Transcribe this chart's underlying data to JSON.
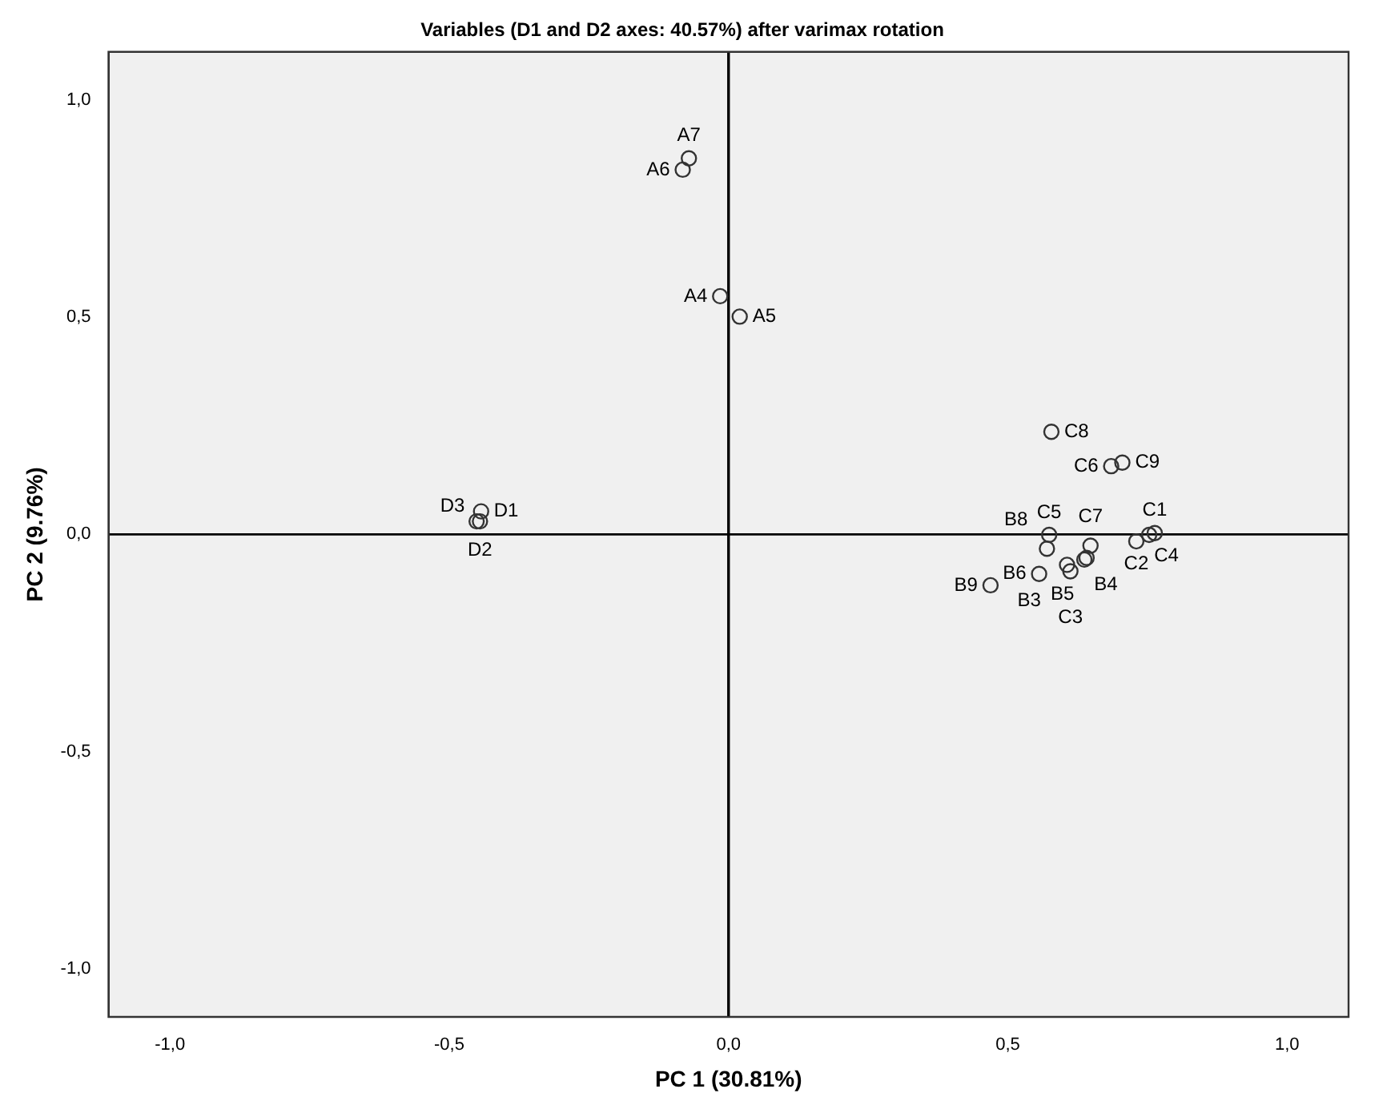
{
  "chart_data": {
    "type": "scatter",
    "title": "Variables (D1 and D2 axes: 40.57%) after varimax rotation",
    "xlabel": "PC 1 (30.81%)",
    "ylabel": "PC 2 (9.76%)",
    "x": [
      -0.071,
      -0.082,
      -0.015,
      0.02,
      -0.443,
      -0.451,
      -0.445,
      0.578,
      0.705,
      0.685,
      0.763,
      0.753,
      0.73,
      0.648,
      0.641,
      0.637,
      0.574,
      0.57,
      0.556,
      0.469,
      0.612,
      0.606
    ],
    "series": [
      {
        "color": "#333333",
        "values": [
          0.865,
          0.839,
          0.548,
          0.501,
          0.053,
          0.03,
          0.03,
          0.236,
          0.165,
          0.157,
          0.003,
          -0.001,
          -0.016,
          -0.026,
          -0.054,
          -0.058,
          -0.001,
          -0.033,
          -0.091,
          -0.117,
          -0.085,
          -0.07
        ]
      }
    ],
    "annotations": [
      {
        "text": "A7",
        "x": -0.071,
        "y": 0.865
      },
      {
        "text": "A6",
        "x": -0.082,
        "y": 0.839
      },
      {
        "text": "A4",
        "x": -0.015,
        "y": 0.548
      },
      {
        "text": "A5",
        "x": 0.02,
        "y": 0.501
      },
      {
        "text": "D1",
        "x": -0.443,
        "y": 0.053
      },
      {
        "text": "D3",
        "x": -0.451,
        "y": 0.03
      },
      {
        "text": "D2",
        "x": -0.445,
        "y": 0.03
      },
      {
        "text": "C8",
        "x": 0.578,
        "y": 0.236
      },
      {
        "text": "C9",
        "x": 0.705,
        "y": 0.165
      },
      {
        "text": "C6",
        "x": 0.685,
        "y": 0.157
      },
      {
        "text": "C1",
        "x": 0.763,
        "y": 0.003
      },
      {
        "text": "C4",
        "x": 0.753,
        "y": -0.001
      },
      {
        "text": "C2",
        "x": 0.73,
        "y": -0.016
      },
      {
        "text": "C7",
        "x": 0.648,
        "y": -0.026
      },
      {
        "text": "B4",
        "x": 0.641,
        "y": -0.054
      },
      {
        "text": "B5",
        "x": 0.637,
        "y": -0.058
      },
      {
        "text": "C5",
        "x": 0.574,
        "y": -0.001
      },
      {
        "text": "B8",
        "x": 0.57,
        "y": -0.033
      },
      {
        "text": "B6",
        "x": 0.556,
        "y": -0.091
      },
      {
        "text": "B9",
        "x": 0.469,
        "y": -0.117
      },
      {
        "text": "C3",
        "x": 0.612,
        "y": -0.085
      },
      {
        "text": "B3",
        "x": 0.606,
        "y": -0.07
      }
    ],
    "ref_lines": [
      {
        "axis": "x",
        "value": 0,
        "color": "#000000"
      },
      {
        "axis": "y",
        "value": 0,
        "color": "#000000"
      }
    ],
    "xlim": [
      -1.11,
      1.11
    ],
    "ylim": [
      -1.11,
      1.11
    ],
    "xticks": [
      {
        "value": -1,
        "label": "-1,0"
      },
      {
        "value": -0.5,
        "label": "-0,5"
      },
      {
        "value": 0,
        "label": "0,0"
      },
      {
        "value": 0.5,
        "label": "0,5"
      },
      {
        "value": 1,
        "label": "1,0"
      }
    ],
    "yticks": [
      {
        "value": -1,
        "label": "-1,0"
      },
      {
        "value": -0.5,
        "label": "-0,5"
      },
      {
        "value": 0,
        "label": "0,0"
      },
      {
        "value": 0.5,
        "label": "0,5"
      },
      {
        "value": 1,
        "label": "1,0"
      }
    ],
    "grid": false,
    "legend": false,
    "marker": "circle"
  }
}
